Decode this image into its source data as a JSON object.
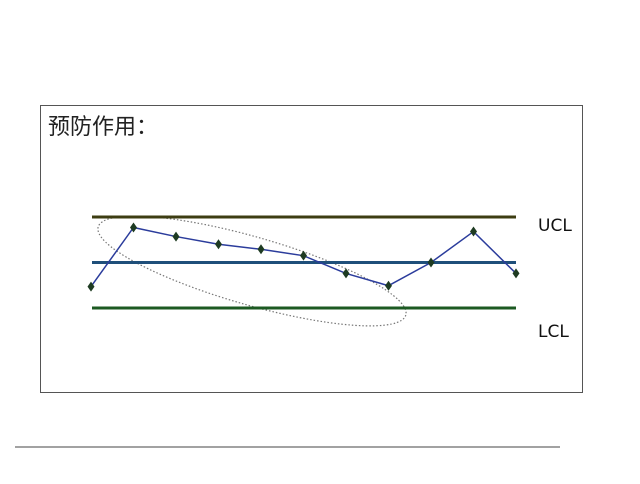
{
  "chart_data": {
    "type": "control",
    "title": "预防作用：",
    "values": [
      -0.53,
      0.77,
      0.57,
      0.4,
      0.29,
      0.15,
      -0.24,
      -0.51,
      0,
      0.68,
      -0.24
    ],
    "color": "#2b3c9c",
    "marker_color": "#1e3b22",
    "ucl": {
      "label": "UCL",
      "value": 1,
      "color": "#3d3d12"
    },
    "center": {
      "value": 0,
      "color": "#1f4f7a"
    },
    "lcl": {
      "label": "LCL",
      "value": -1,
      "color": "#1c5a22"
    }
  }
}
